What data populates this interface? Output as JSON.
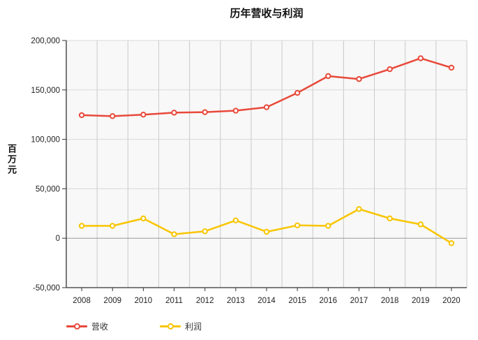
{
  "title": "历年营收与利润",
  "y_axis_title": "百万元",
  "legend": {
    "items": [
      {
        "label": "营收",
        "color": "#e8493a"
      },
      {
        "label": "利润",
        "color": "#f8c500"
      }
    ]
  },
  "chart_data": {
    "type": "line",
    "title": "历年营收与利润",
    "ylabel": "百万元",
    "categories": [
      "2008",
      "2009",
      "2010",
      "2011",
      "2012",
      "2013",
      "2014",
      "2015",
      "2016",
      "2017",
      "2018",
      "2019",
      "2020"
    ],
    "series": [
      {
        "name": "营收",
        "color": "#e8493a",
        "values": [
          124500,
          123500,
          125000,
          127000,
          127500,
          129000,
          132500,
          147000,
          164000,
          161000,
          171000,
          182000,
          172500
        ]
      },
      {
        "name": "利润",
        "color": "#f8c500",
        "values": [
          12500,
          12500,
          20000,
          4000,
          7000,
          18000,
          6500,
          13000,
          12500,
          29500,
          20000,
          14000,
          -5000
        ]
      }
    ],
    "ylim": [
      -50000,
      200000
    ],
    "y_tick_step": 50000,
    "y_tick_labels": [
      "-50,000",
      "0",
      "50,000",
      "100,000",
      "150,000",
      "200,000"
    ],
    "grid": true,
    "marker": "open-circle",
    "legend_position": "bottom-left"
  },
  "colors": {
    "plot_bg": "#f8f8f8",
    "grid_v": "#c9c9c9",
    "grid_h": "#d8d8d8",
    "zero_line": "#999999",
    "axis": "#333333",
    "text": "#222222"
  }
}
